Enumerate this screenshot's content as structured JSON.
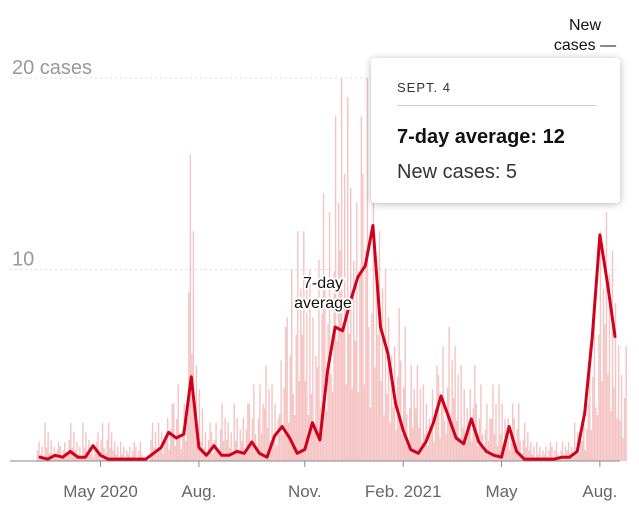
{
  "chart_data": {
    "type": "bar",
    "title": "",
    "xlabel": "",
    "ylabel": "",
    "ylim": [
      0,
      20
    ],
    "y_ticks": [
      {
        "value": 10,
        "label": "10"
      },
      {
        "value": 20,
        "label": "20 cases"
      }
    ],
    "x_ticks": [
      {
        "week": 8,
        "label": "May 2020"
      },
      {
        "week": 21,
        "label": "Aug."
      },
      {
        "week": 35,
        "label": "Nov."
      },
      {
        "week": 48,
        "label": "Feb. 2021"
      },
      {
        "week": 61,
        "label": "May"
      },
      {
        "week": 74,
        "label": "Aug."
      }
    ],
    "x_unit": "weeks since mid-March 2020",
    "series": [
      {
        "name": "New cases",
        "kind": "daily bars (weekly peaks shown)",
        "color": "#f5c3c3",
        "peak_values": [
          1,
          2,
          1,
          1,
          2,
          1,
          2,
          1,
          2,
          2,
          1,
          1,
          1,
          1,
          0,
          2,
          2,
          3,
          4,
          3,
          16,
          5,
          2,
          2,
          3,
          2,
          3,
          3,
          4,
          4,
          5,
          4,
          7,
          10,
          12,
          12,
          10,
          14,
          13,
          18,
          20,
          19,
          18,
          20,
          14,
          12,
          10,
          8,
          7,
          5,
          5,
          4,
          5,
          6,
          7,
          6,
          5,
          5,
          4,
          3,
          4,
          4,
          3,
          3,
          2,
          1,
          1,
          1,
          1,
          1,
          1,
          2,
          3,
          8,
          12,
          13,
          11,
          6
        ]
      },
      {
        "name": "7-day average",
        "kind": "line",
        "color": "#d0021b",
        "values": [
          0.2,
          0.1,
          0.3,
          0.2,
          0.5,
          0.2,
          0.2,
          0.8,
          0.3,
          0.1,
          0.1,
          0.1,
          0.1,
          0.1,
          0.1,
          0.4,
          0.7,
          1.5,
          1.2,
          1.4,
          4.4,
          0.7,
          0.3,
          0.8,
          0.3,
          0.3,
          0.5,
          0.4,
          1.0,
          0.4,
          0.2,
          1.3,
          1.8,
          1.2,
          0.4,
          0.6,
          2.0,
          1.1,
          4.7,
          7.0,
          6.8,
          8.3,
          9.6,
          10.2,
          12.3,
          7.0,
          5.6,
          3.0,
          1.6,
          0.6,
          0.4,
          1.0,
          2.0,
          3.4,
          2.3,
          1.2,
          0.9,
          2.2,
          1.0,
          0.5,
          0.3,
          0.2,
          1.8,
          0.5,
          0.1,
          0.1,
          0.1,
          0.1,
          0.1,
          0.2,
          0.2,
          0.5,
          2.5,
          6.5,
          11.8,
          9.3,
          6.5
        ]
      }
    ],
    "legend": [
      {
        "label": "New cases —",
        "lines": [
          "New",
          "cases —"
        ]
      },
      {
        "label": "7-day average",
        "lines": [
          "7-day",
          "average"
        ]
      }
    ],
    "tooltip": {
      "date": "SEPT. 4",
      "avg_label": "7-day average: 12",
      "new_label": "New cases: 5"
    }
  }
}
